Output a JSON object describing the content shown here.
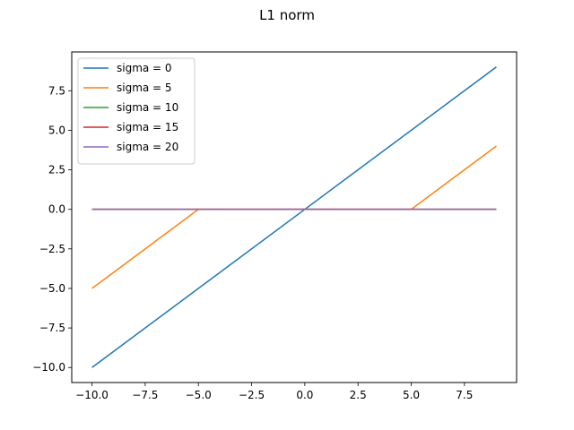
{
  "chart_data": {
    "type": "line",
    "title": "L1 norm",
    "xlabel": "",
    "ylabel": "",
    "xlim": [
      -10.95,
      9.95
    ],
    "ylim": [
      -10.95,
      9.95
    ],
    "x_ticks": [
      -10.0,
      -7.5,
      -5.0,
      -2.5,
      0.0,
      2.5,
      5.0,
      7.5
    ],
    "x_tick_labels": [
      "−10.0",
      "−7.5",
      "−5.0",
      "−2.5",
      "0.0",
      "2.5",
      "5.0",
      "7.5"
    ],
    "y_ticks": [
      -10.0,
      -7.5,
      -5.0,
      -2.5,
      0.0,
      2.5,
      5.0,
      7.5
    ],
    "y_tick_labels": [
      "−10.0",
      "−7.5",
      "−5.0",
      "−2.5",
      "0.0",
      "2.5",
      "5.0",
      "7.5"
    ],
    "grid": false,
    "legend_position": "upper-left",
    "series": [
      {
        "name": "sigma = 0",
        "color": "#1f77b4",
        "x": [
          -10,
          0,
          9
        ],
        "y": [
          -10,
          0,
          9
        ]
      },
      {
        "name": "sigma = 5",
        "color": "#ff7f0e",
        "x": [
          -10,
          -5,
          5,
          9
        ],
        "y": [
          -5,
          0,
          0,
          4
        ]
      },
      {
        "name": "sigma = 10",
        "color": "#2ca02c",
        "x": [
          -10,
          9
        ],
        "y": [
          0,
          0
        ]
      },
      {
        "name": "sigma = 15",
        "color": "#d62728",
        "x": [
          -10,
          9
        ],
        "y": [
          0,
          0
        ]
      },
      {
        "name": "sigma = 20",
        "color": "#9467bd",
        "x": [
          -10,
          9
        ],
        "y": [
          0,
          0
        ]
      }
    ]
  }
}
